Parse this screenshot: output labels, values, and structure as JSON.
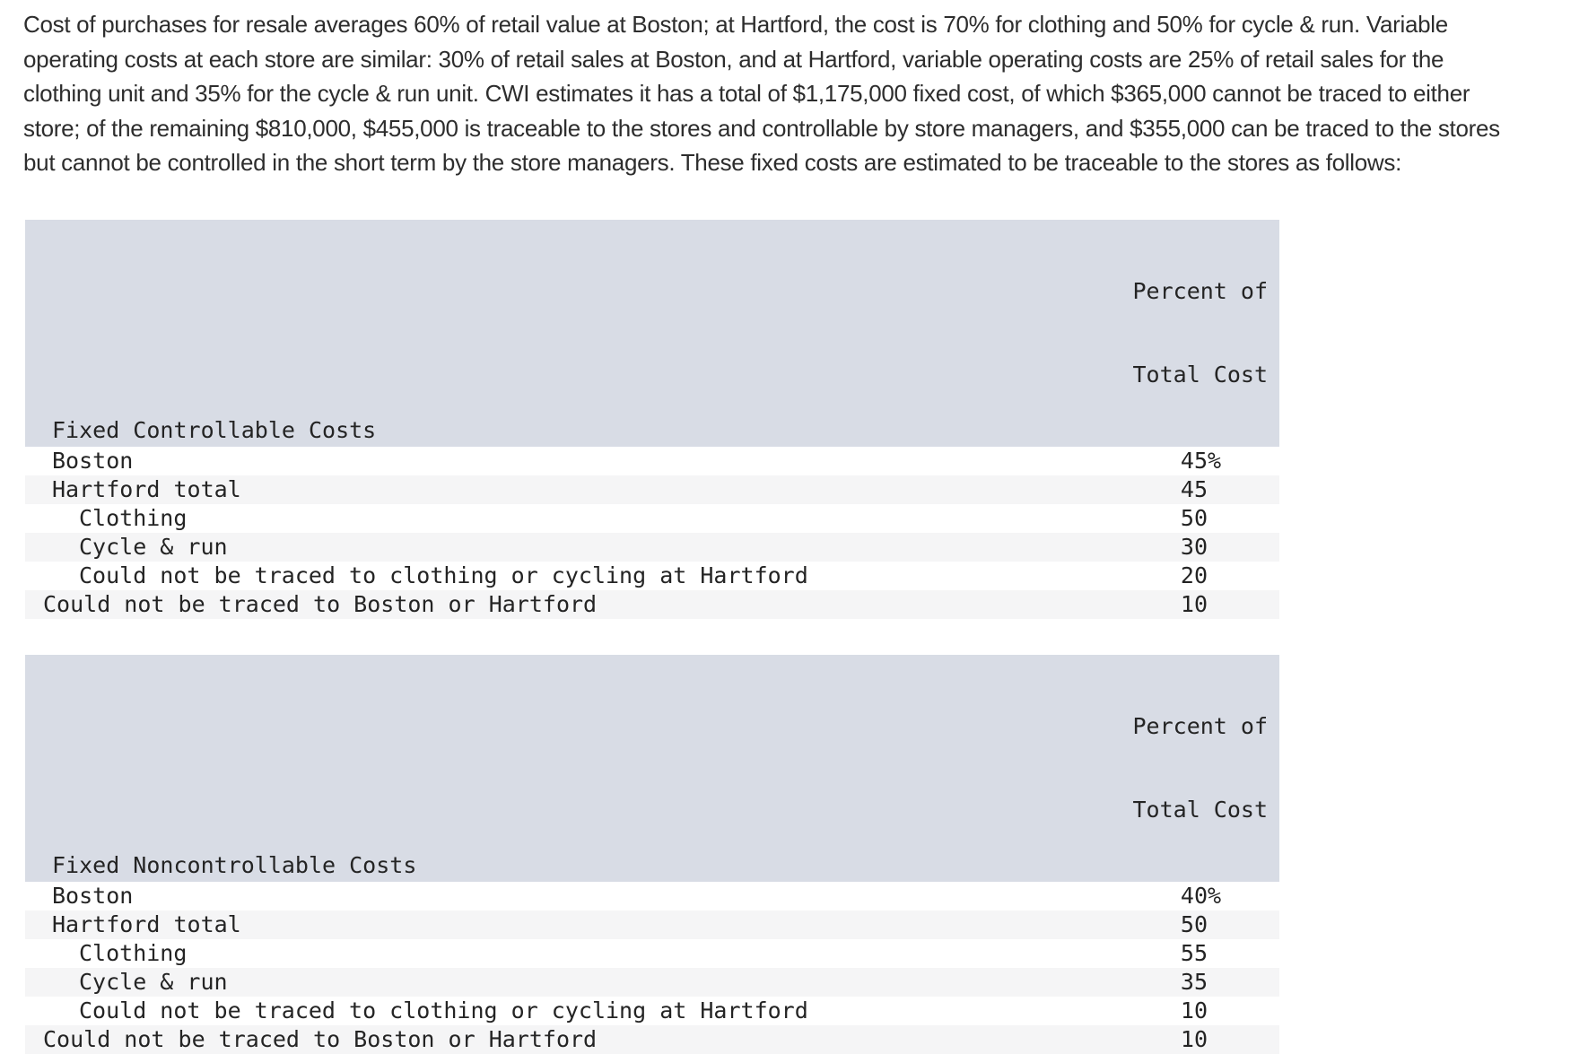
{
  "intro_paragraph": "Cost of purchases for resale averages 60% of retail value at Boston; at Hartford, the cost is 70% for clothing and 50% for cycle & run. Variable operating costs at each store are similar: 30% of retail sales at Boston, and at Hartford, variable operating costs are 25% of retail sales for the clothing unit and 35% for the cycle & run unit. CWI estimates it has a total of $1,175,000 fixed cost, of which $365,000 cannot be traced to either store; of the remaining $810,000, $455,000 is traceable to the stores and controllable by store managers, and $355,000 can be traced to the stores but cannot be controlled in the short term by the store managers. These fixed costs are estimated to be traceable to the stores as follows:",
  "tables": [
    {
      "id": "fixed-controllable-costs",
      "title": "Fixed Controllable Costs",
      "value_header": [
        "Percent of",
        "Total Cost"
      ],
      "rows": [
        {
          "label": "Boston",
          "value": "45",
          "suffix": "%",
          "indent": 1
        },
        {
          "label": "Hartford total",
          "value": "45",
          "suffix": "",
          "indent": 1
        },
        {
          "label": "Clothing",
          "value": "50",
          "suffix": "",
          "indent": 2
        },
        {
          "label": "Cycle & run",
          "value": "30",
          "suffix": "",
          "indent": 2
        },
        {
          "label": "Could not be traced to clothing or cycling at Hartford",
          "value": "20",
          "suffix": "",
          "indent": 2
        },
        {
          "label": "Could not be traced to Boston or Hartford",
          "value": "10",
          "suffix": "",
          "indent": 0
        }
      ]
    },
    {
      "id": "fixed-noncontrollable-costs",
      "title": "Fixed Noncontrollable Costs",
      "value_header": [
        "Percent of",
        "Total Cost"
      ],
      "rows": [
        {
          "label": "Boston",
          "value": "40",
          "suffix": "%",
          "indent": 1
        },
        {
          "label": "Hartford total",
          "value": "50",
          "suffix": "",
          "indent": 1
        },
        {
          "label": "Clothing",
          "value": "55",
          "suffix": "",
          "indent": 2
        },
        {
          "label": "Cycle & run",
          "value": "35",
          "suffix": "",
          "indent": 2
        },
        {
          "label": "Could not be traced to clothing or cycling at Hartford",
          "value": "10",
          "suffix": "",
          "indent": 2
        },
        {
          "label": "Could not be traced to Boston or Hartford",
          "value": "10",
          "suffix": "",
          "indent": 0
        }
      ]
    }
  ],
  "colors": {
    "table_header_bg": "#d8dce5",
    "row_stripe_bg": "#f5f5f6",
    "text": "#2d2d2d"
  }
}
